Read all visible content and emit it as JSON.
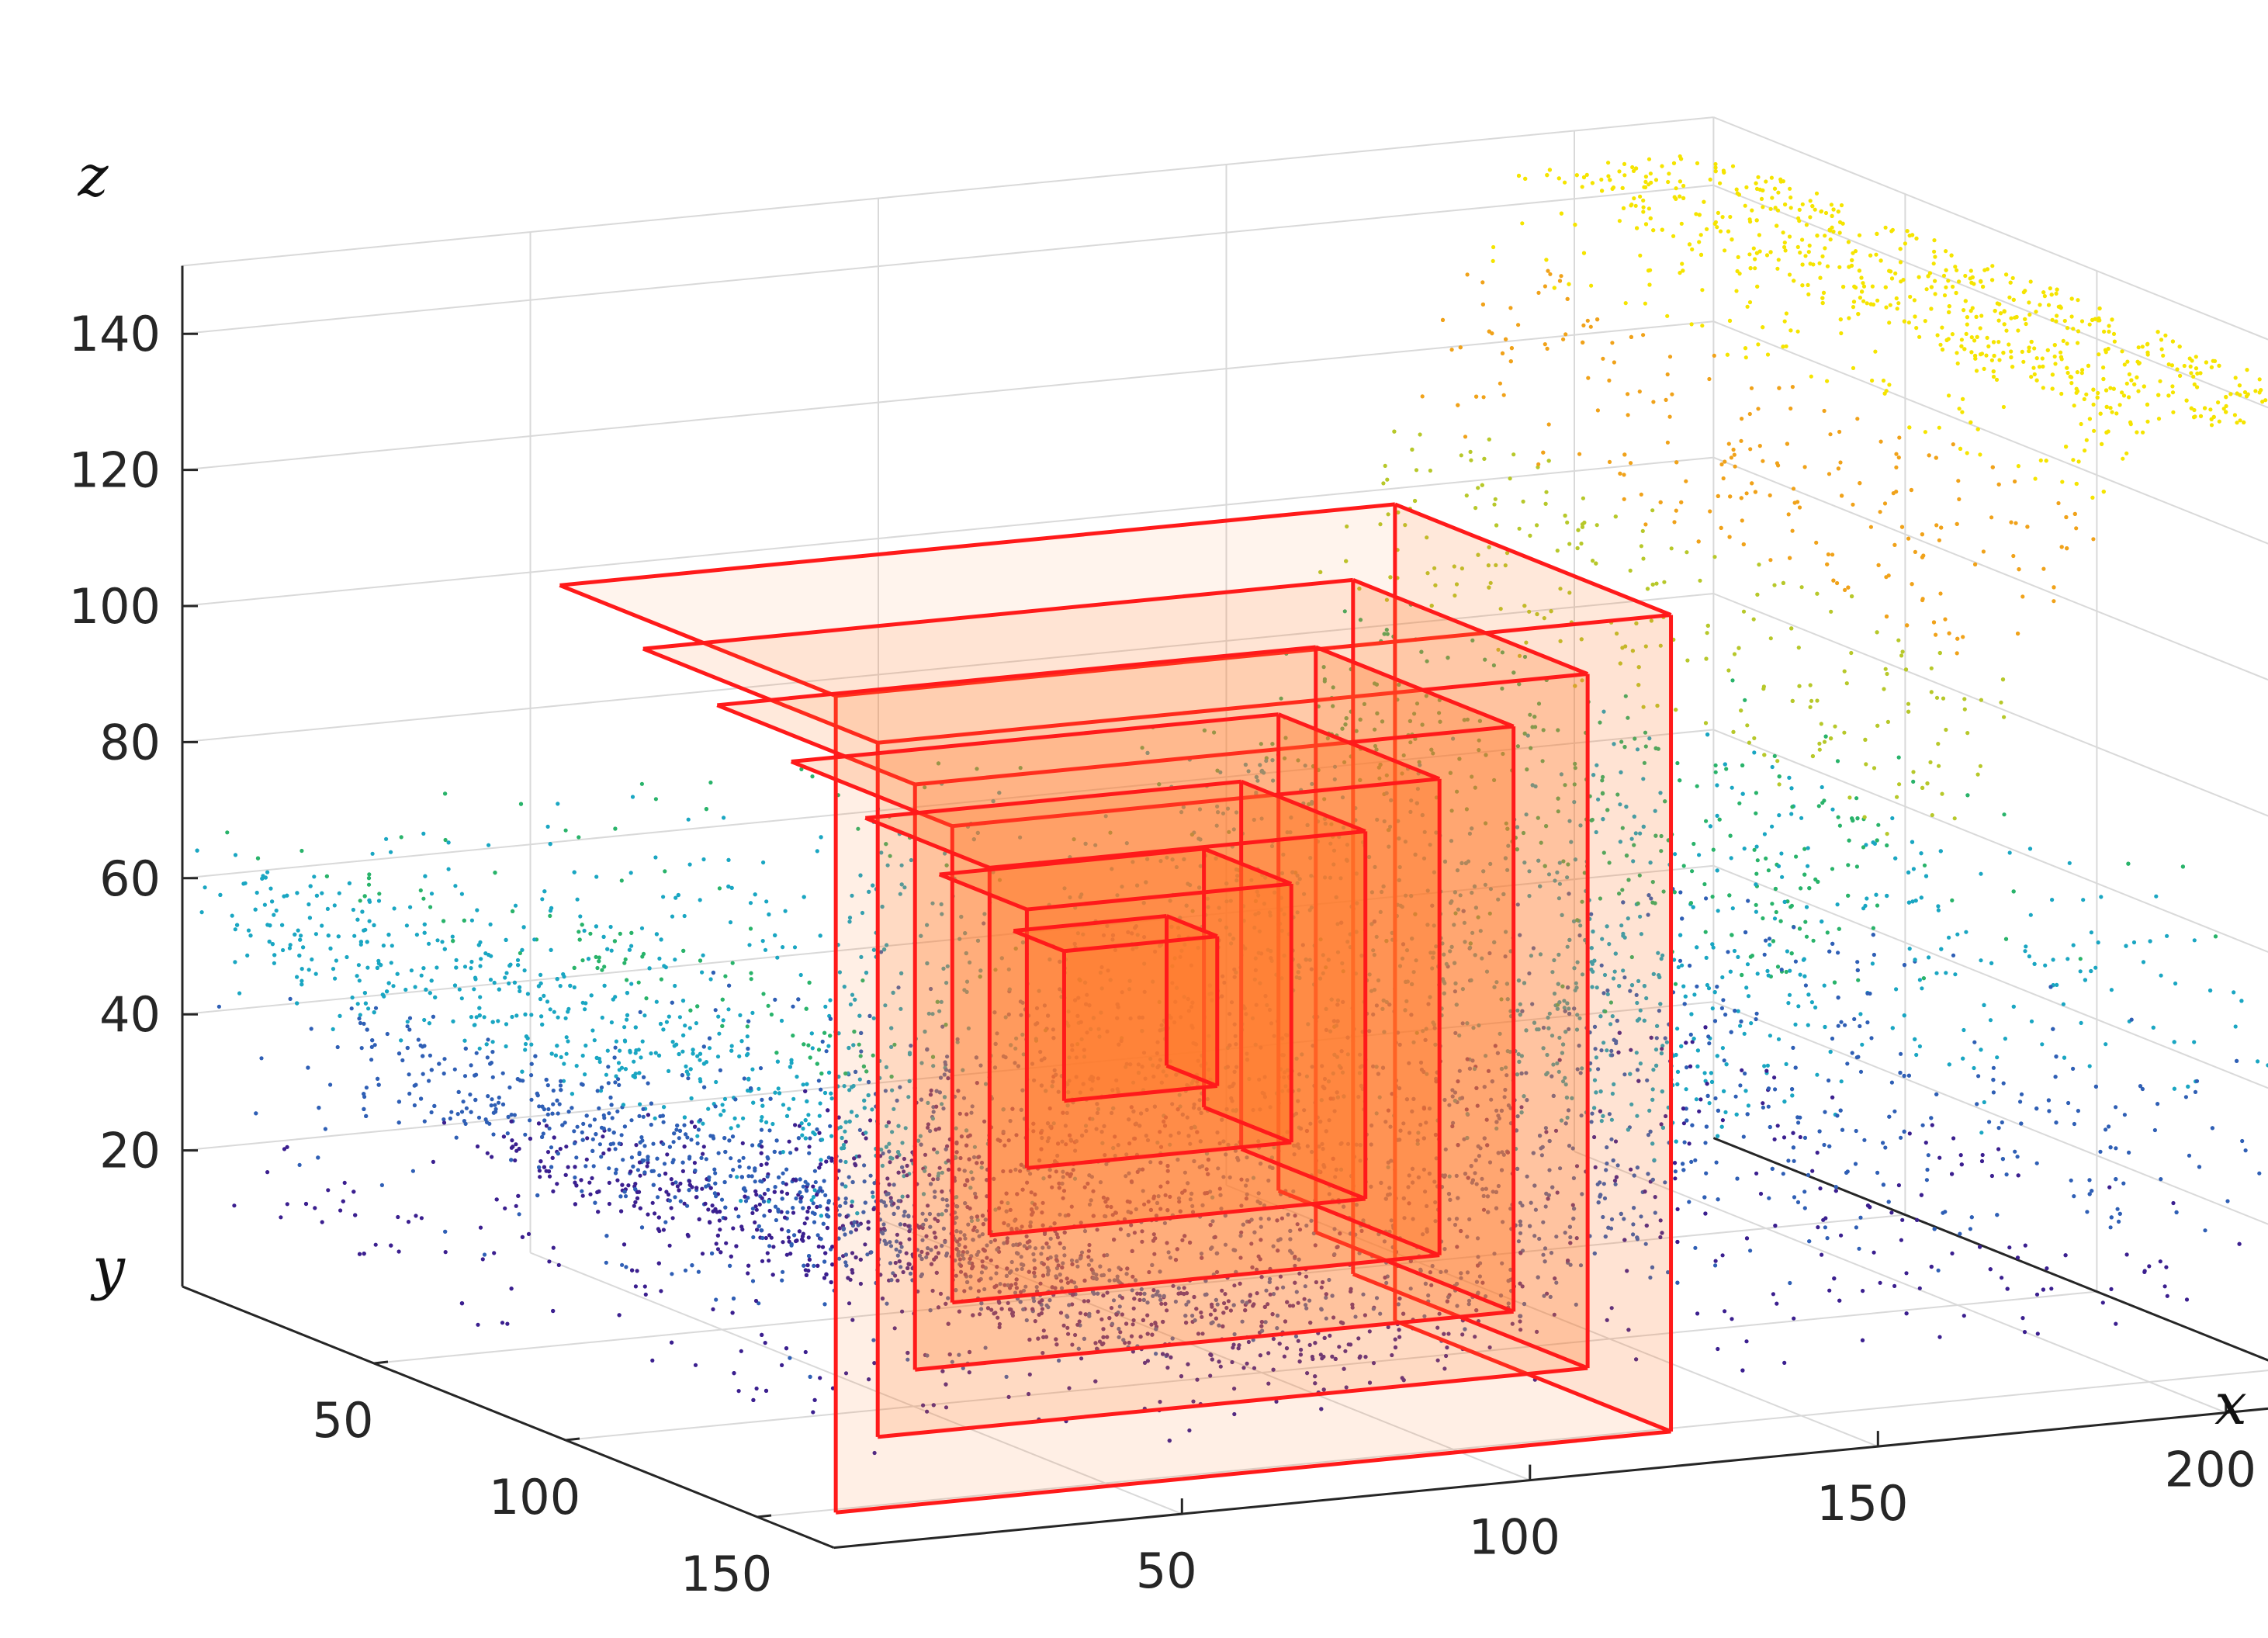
{
  "chart_data": {
    "type": "scatter",
    "projection": "3d",
    "title": "",
    "axes": {
      "x": {
        "label": "x",
        "ticks": [
          50,
          100,
          150,
          200
        ],
        "range": [
          0,
          220
        ]
      },
      "y": {
        "label": "y",
        "ticks": [
          50,
          100,
          150
        ],
        "range": [
          0,
          170
        ]
      },
      "z": {
        "label": "z",
        "ticks": [
          20,
          40,
          60,
          80,
          100,
          120,
          140
        ],
        "range": [
          0,
          150
        ]
      }
    },
    "grid": true,
    "colormap": [
      "#3b1f8f",
      "#2f5fb5",
      "#1aa6c2",
      "#29b36a",
      "#b7c82a",
      "#f0a21a",
      "#f5e400"
    ],
    "point_cloud": {
      "description_shape": "valley-shaped surface, high at x edges, low near x center",
      "z_min": 10,
      "z_max": 145
    },
    "boxes": {
      "edge_color": "#ff1a1a",
      "fill_color": "#ff7a2a",
      "count": 7,
      "half_sizes": [
        60,
        51,
        43,
        35,
        27,
        19,
        11
      ],
      "center": {
        "x": 90,
        "y": 80,
        "z": 50
      }
    }
  }
}
